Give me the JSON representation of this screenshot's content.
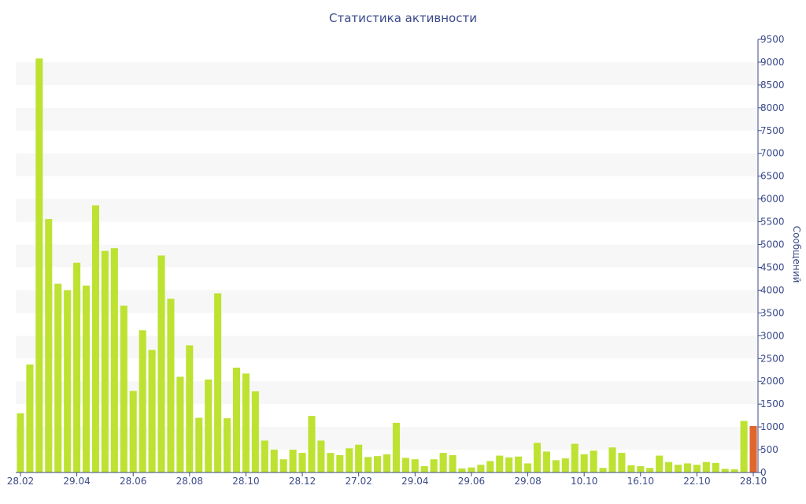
{
  "chart_data": {
    "type": "bar",
    "title": "Статистика активности",
    "xlabel": "",
    "ylabel": "Сообщений",
    "ylim": [
      0,
      9500
    ],
    "y_ticks": [
      0,
      500,
      1000,
      1500,
      2000,
      2500,
      3000,
      3500,
      4000,
      4500,
      5000,
      5500,
      6000,
      6500,
      7000,
      7500,
      8000,
      8500,
      9000,
      9500
    ],
    "x_tick_labels": [
      {
        "label": "28.02",
        "index": 0
      },
      {
        "label": "29.04",
        "index": 6
      },
      {
        "label": "28.06",
        "index": 12
      },
      {
        "label": "28.08",
        "index": 18
      },
      {
        "label": "28.10",
        "index": 24
      },
      {
        "label": "28.12",
        "index": 30
      },
      {
        "label": "27.02",
        "index": 36
      },
      {
        "label": "29.04",
        "index": 42
      },
      {
        "label": "29.06",
        "index": 48
      },
      {
        "label": "29.08",
        "index": 54
      },
      {
        "label": "10.10",
        "index": 60
      },
      {
        "label": "16.10",
        "index": 66
      },
      {
        "label": "22.10",
        "index": 72
      },
      {
        "label": "28.10",
        "index": 78
      }
    ],
    "values": [
      1300,
      2370,
      9080,
      5560,
      4140,
      4000,
      4600,
      4100,
      5860,
      4860,
      4920,
      3660,
      1790,
      3120,
      2690,
      4760,
      3810,
      2100,
      2790,
      1200,
      2040,
      3930,
      1190,
      2300,
      2170,
      1780,
      700,
      500,
      290,
      500,
      430,
      1240,
      700,
      430,
      380,
      530,
      610,
      340,
      360,
      400,
      1090,
      320,
      290,
      140,
      290,
      430,
      380,
      90,
      110,
      170,
      250,
      370,
      330,
      350,
      200,
      650,
      460,
      270,
      310,
      630,
      400,
      480,
      100,
      550,
      430,
      160,
      140,
      100,
      370,
      230,
      170,
      200,
      170,
      230,
      210,
      80,
      70,
      1130,
      1020
    ],
    "highlight_index": 78,
    "colors": {
      "bar": "#bde232",
      "highlight": "#e0662b",
      "axis_text": "#3b4a8a",
      "band": "#f7f7f7"
    },
    "grid": "alternating-bands",
    "legend": "none"
  }
}
